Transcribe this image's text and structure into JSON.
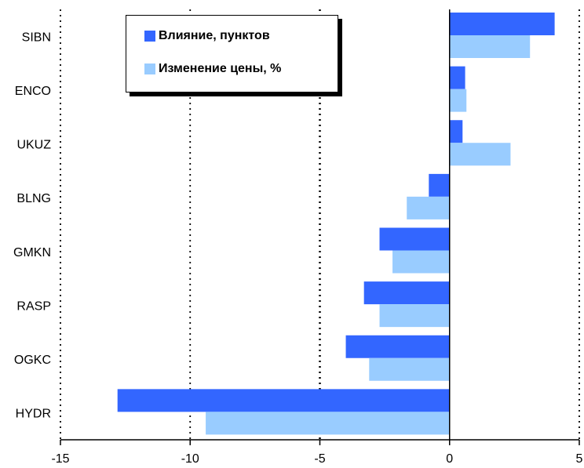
{
  "chart_data": {
    "type": "bar",
    "orientation": "horizontal",
    "categories": [
      "SIBN",
      "ENCO",
      "UKUZ",
      "BLNG",
      "GMKN",
      "RASP",
      "OGKC",
      "HYDR"
    ],
    "series": [
      {
        "name": "Влияние, пунктов",
        "color": "#3366ff",
        "values": [
          4.05,
          0.6,
          0.5,
          -0.8,
          -2.7,
          -3.3,
          -4.0,
          -12.8
        ]
      },
      {
        "name": "Изменение цены, %",
        "color": "#99ccff",
        "values": [
          3.1,
          0.65,
          2.35,
          -1.65,
          -2.2,
          -2.7,
          -3.1,
          -9.4
        ]
      }
    ],
    "xlim": [
      -15,
      5
    ],
    "xticks": [
      "-15",
      "-10",
      "-5",
      "0",
      "5"
    ],
    "title": "",
    "xlabel": "",
    "ylabel": "",
    "grid": "vertical dotted",
    "legend_position": "top-left"
  }
}
